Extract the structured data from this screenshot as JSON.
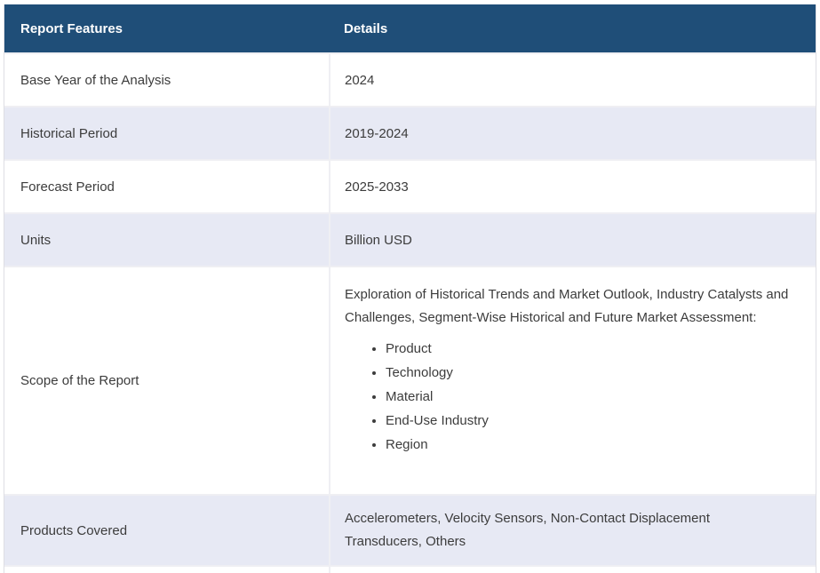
{
  "table": {
    "columns": [
      {
        "label": "Report Features"
      },
      {
        "label": "Details"
      }
    ],
    "rows": [
      {
        "feature": "Base Year of the Analysis",
        "detail": "2024"
      },
      {
        "feature": "Historical Period",
        "detail": "2019-2024"
      },
      {
        "feature": "Forecast Period",
        "detail": "2025-2033"
      },
      {
        "feature": "Units",
        "detail": "Billion USD"
      },
      {
        "feature": "Scope of the Report",
        "detail_intro": "Exploration of Historical Trends and Market Outlook, Industry Catalysts and Challenges, Segment-Wise Historical and Future Market Assessment:",
        "detail_bullets": [
          "Product",
          "Technology",
          "Material",
          "End-Use Industry",
          "Region"
        ]
      },
      {
        "feature": "Products Covered",
        "detail": "Accelerometers, Velocity Sensors, Non-Contact Displacement Transducers, Others"
      }
    ]
  },
  "colors": {
    "header_bg": "#1F4E78",
    "header_text": "#FFFFFF",
    "row_alt_bg": "#E7E9F4",
    "row_bg": "#FFFFFF",
    "border": "#EFEFF3",
    "outer_border": "#DEDEE4",
    "text": "#3C3C3C"
  }
}
